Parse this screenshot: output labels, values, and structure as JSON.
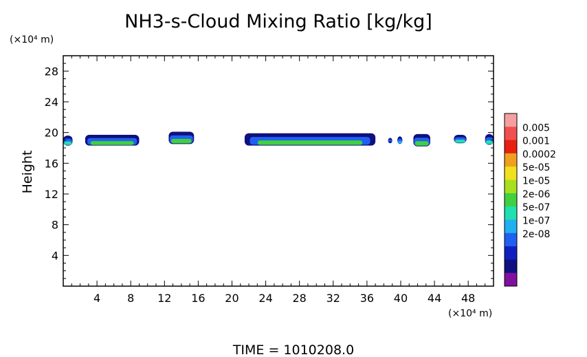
{
  "chart_data": {
    "type": "heatmap",
    "title": "NH3-s-Cloud Mixing Ratio [kg/kg]",
    "xlabel": "",
    "ylabel": "Height",
    "x_unit": "(×10⁴ m)",
    "y_unit": "(×10⁴ m)",
    "xlim": [
      0,
      51
    ],
    "ylim": [
      0,
      30
    ],
    "x_ticks": [
      "4",
      "8",
      "12",
      "16",
      "20",
      "24",
      "28",
      "32",
      "36",
      "40",
      "44",
      "48"
    ],
    "y_ticks": [
      "4",
      "8",
      "12",
      "16",
      "20",
      "24",
      "28"
    ],
    "grid": false,
    "time_label": "TIME = 1010208.0",
    "colorbar": {
      "labels": [
        "0.005",
        "0.001",
        "0.0002",
        "5e-05",
        "1e-05",
        "2e-06",
        "5e-07",
        "1e-07",
        "2e-08"
      ],
      "colors": [
        "#f4a0a0",
        "#f05050",
        "#e82010",
        "#f0a020",
        "#f0e020",
        "#a8e020",
        "#40d040",
        "#20e0b0",
        "#20b0f0",
        "#2060f0",
        "#1020c0",
        "#101080",
        "#8010a0"
      ]
    },
    "cloud_regions": [
      {
        "x": [
          0.0,
          1.1
        ],
        "y": [
          18.3,
          19.6
        ],
        "core": "#20e0b0"
      },
      {
        "x": [
          2.6,
          9.0
        ],
        "y": [
          18.3,
          19.7
        ],
        "core": "#40d040"
      },
      {
        "x": [
          12.5,
          15.5
        ],
        "y": [
          18.5,
          20.1
        ],
        "core": "#40d040"
      },
      {
        "x": [
          21.5,
          37.0
        ],
        "y": [
          18.3,
          19.9
        ],
        "core": "#40d040"
      },
      {
        "x": [
          38.5,
          39.0
        ],
        "y": [
          18.6,
          19.3
        ],
        "core": "#1020c0"
      },
      {
        "x": [
          39.6,
          40.2
        ],
        "y": [
          18.5,
          19.5
        ],
        "core": "#20b0f0"
      },
      {
        "x": [
          41.5,
          43.5
        ],
        "y": [
          18.2,
          19.8
        ],
        "core": "#40d040"
      },
      {
        "x": [
          46.3,
          47.8
        ],
        "y": [
          18.6,
          19.7
        ],
        "core": "#20e0b0"
      },
      {
        "x": [
          50.0,
          51.0
        ],
        "y": [
          18.4,
          19.8
        ],
        "core": "#20e0b0"
      }
    ]
  }
}
